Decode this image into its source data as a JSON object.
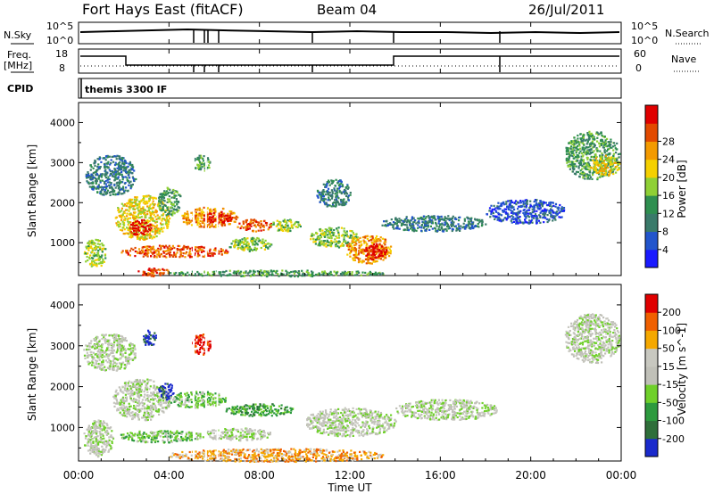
{
  "header": {
    "station": "Fort Hays East (fitACF)",
    "beam": "Beam 04",
    "date": "26/Jul/2011"
  },
  "noise_panel": {
    "left_label": "N.Sky",
    "right_label": "N.Search",
    "left_ticks": [
      "10^5",
      "10^0"
    ],
    "right_ticks": [
      "10^5",
      "10^0"
    ]
  },
  "freq_panel": {
    "left_label_1": "Freq.",
    "left_label_2": "[MHz]",
    "right_label": "Nave",
    "left_ticks": [
      "18",
      "8"
    ],
    "right_ticks": [
      "60",
      "0"
    ]
  },
  "cpid_panel": {
    "label": "CPID",
    "value": "themis 3300 IF"
  },
  "time_axis": {
    "label": "Time UT",
    "ticks": [
      "00:00",
      "04:00",
      "08:00",
      "12:00",
      "16:00",
      "20:00",
      "00:00"
    ]
  },
  "chart_data": [
    {
      "type": "heatmap",
      "name": "power",
      "ylabel": "Slant Range [km]",
      "y_ticks": [
        1000,
        2000,
        3000,
        4000
      ],
      "ylim": [
        180,
        4500
      ],
      "xlim": [
        0,
        24
      ],
      "colorbar": {
        "title": "Power [dB]",
        "ticks": [
          "4",
          "8",
          "12",
          "16",
          "20",
          "24",
          "28"
        ],
        "colors": [
          "#1a1aff",
          "#2255cc",
          "#3a7a6a",
          "#2f8f50",
          "#8fd035",
          "#f5d000",
          "#f39a00",
          "#e24a00",
          "#e00000"
        ]
      },
      "regions": [
        {
          "x": [
            0.3,
            2.5
          ],
          "y": [
            2200,
            3200
          ],
          "level": 2
        },
        {
          "x": [
            0.2,
            1.2
          ],
          "y": [
            400,
            1100
          ],
          "level": 4
        },
        {
          "x": [
            1.6,
            4.0
          ],
          "y": [
            1100,
            2200
          ],
          "level": 5
        },
        {
          "x": [
            2.2,
            3.2
          ],
          "y": [
            1200,
            1600
          ],
          "level": 8
        },
        {
          "x": [
            3.5,
            4.5
          ],
          "y": [
            1700,
            2400
          ],
          "level": 3
        },
        {
          "x": [
            4.5,
            7.0
          ],
          "y": [
            1400,
            1900
          ],
          "level": 6
        },
        {
          "x": [
            5.5,
            6.8
          ],
          "y": [
            1500,
            1800
          ],
          "level": 8
        },
        {
          "x": [
            7.0,
            8.5
          ],
          "y": [
            1300,
            1600
          ],
          "level": 7
        },
        {
          "x": [
            8.5,
            9.8
          ],
          "y": [
            1300,
            1600
          ],
          "level": 4
        },
        {
          "x": [
            1.8,
            6.6
          ],
          "y": [
            650,
            950
          ],
          "level": 7
        },
        {
          "x": [
            6.6,
            8.5
          ],
          "y": [
            800,
            1150
          ],
          "level": 4
        },
        {
          "x": [
            2.6,
            4.0
          ],
          "y": [
            180,
            380
          ],
          "level": 7
        },
        {
          "x": [
            4.0,
            13.5
          ],
          "y": [
            180,
            330
          ],
          "level": 3
        },
        {
          "x": [
            10.2,
            12.3
          ],
          "y": [
            900,
            1400
          ],
          "level": 4
        },
        {
          "x": [
            11.8,
            13.8
          ],
          "y": [
            500,
            1200
          ],
          "level": 6
        },
        {
          "x": [
            12.6,
            13.6
          ],
          "y": [
            600,
            1000
          ],
          "level": 8
        },
        {
          "x": [
            13.4,
            18.0
          ],
          "y": [
            1300,
            1700
          ],
          "level": 2
        },
        {
          "x": [
            18.0,
            21.5
          ],
          "y": [
            1500,
            2100
          ],
          "level": 1
        },
        {
          "x": [
            10.5,
            12.0
          ],
          "y": [
            1900,
            2600
          ],
          "level": 2
        },
        {
          "x": [
            21.5,
            23.9
          ],
          "y": [
            2600,
            3800
          ],
          "level": 3
        },
        {
          "x": [
            22.6,
            23.9
          ],
          "y": [
            2700,
            3200
          ],
          "level": 5
        },
        {
          "x": [
            5.0,
            5.8
          ],
          "y": [
            2800,
            3200
          ],
          "level": 3
        }
      ]
    },
    {
      "type": "heatmap",
      "name": "velocity",
      "ylabel": "Slant Range [km]",
      "y_ticks": [
        1000,
        2000,
        3000,
        4000
      ],
      "ylim": [
        180,
        4500
      ],
      "xlim": [
        0,
        24
      ],
      "colorbar": {
        "title": "Velocity [m s^-1]",
        "ticks": [
          "200",
          "100",
          "50",
          "15",
          "-15",
          "-50",
          "-100",
          "-200"
        ],
        "colors": [
          "#1a2acc",
          "#2f6f3a",
          "#2d9a3e",
          "#6fd02a",
          "#c0c0b8",
          "#c8c8c0",
          "#f5a800",
          "#f06000",
          "#e00000"
        ]
      },
      "regions": [
        {
          "x": [
            0.2,
            2.5
          ],
          "y": [
            2400,
            3300
          ],
          "level": 4
        },
        {
          "x": [
            0.2,
            1.5
          ],
          "y": [
            300,
            1200
          ],
          "level": 4
        },
        {
          "x": [
            1.5,
            4.0
          ],
          "y": [
            1200,
            2200
          ],
          "level": 4
        },
        {
          "x": [
            3.5,
            4.2
          ],
          "y": [
            1700,
            2100
          ],
          "level": 0
        },
        {
          "x": [
            4.0,
            6.5
          ],
          "y": [
            1500,
            1900
          ],
          "level": 3
        },
        {
          "x": [
            6.5,
            9.5
          ],
          "y": [
            1300,
            1600
          ],
          "level": 2
        },
        {
          "x": [
            1.8,
            5.5
          ],
          "y": [
            650,
            950
          ],
          "level": 3
        },
        {
          "x": [
            5.5,
            8.5
          ],
          "y": [
            700,
            1000
          ],
          "level": 4
        },
        {
          "x": [
            4.0,
            13.5
          ],
          "y": [
            180,
            500
          ],
          "level": 6
        },
        {
          "x": [
            10.0,
            14.0
          ],
          "y": [
            800,
            1500
          ],
          "level": 4
        },
        {
          "x": [
            14.0,
            18.5
          ],
          "y": [
            1200,
            1700
          ],
          "level": 4
        },
        {
          "x": [
            21.5,
            23.9
          ],
          "y": [
            2600,
            3800
          ],
          "level": 4
        },
        {
          "x": [
            5.0,
            5.8
          ],
          "y": [
            2800,
            3300
          ],
          "level": 8
        },
        {
          "x": [
            2.8,
            3.4
          ],
          "y": [
            3000,
            3400
          ],
          "level": 0
        }
      ]
    }
  ]
}
